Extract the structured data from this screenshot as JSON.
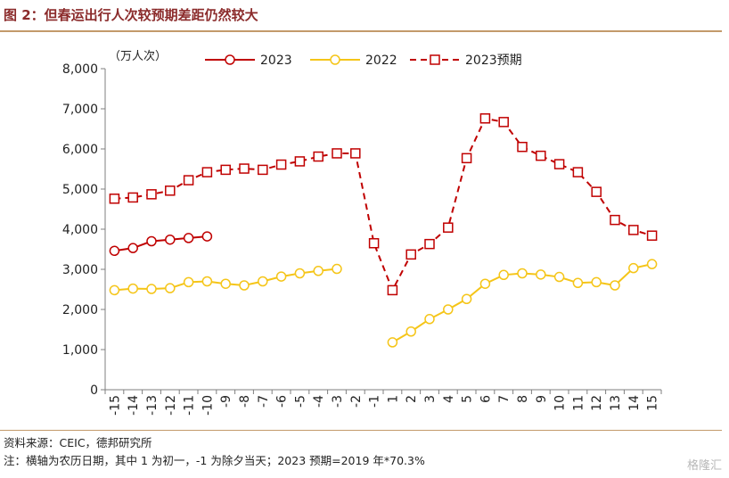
{
  "figure": {
    "title": "图 2：但春运出行人次较预期差距仍然较大",
    "source": "资料来源：CEIC，德邦研究所",
    "note": "注：横轴为农历日期，其中 1 为初一，-1 为除夕当天；2023 预期=2019 年*70.3%",
    "watermark": "格隆汇"
  },
  "chart_data": {
    "type": "line",
    "title": "",
    "xlabel": "",
    "ylabel": "（万人次）",
    "categories": [
      "-15",
      "-14",
      "-13",
      "-12",
      "-11",
      "-10",
      "-9",
      "-8",
      "-7",
      "-6",
      "-5",
      "-4",
      "-3",
      "-2",
      "-1",
      "1",
      "2",
      "3",
      "4",
      "5",
      "6",
      "7",
      "8",
      "9",
      "10",
      "11",
      "12",
      "13",
      "14",
      "15"
    ],
    "ylim": [
      0,
      8000
    ],
    "yticks": [
      0,
      1000,
      2000,
      3000,
      4000,
      5000,
      6000,
      7000,
      8000
    ],
    "ytick_labels": [
      "0",
      "1,000",
      "2,000",
      "3,000",
      "4,000",
      "5,000",
      "6,000",
      "7,000",
      "8,000"
    ],
    "grid": false,
    "legend_position": "top",
    "series": [
      {
        "name": "2023",
        "color": "#C00000",
        "line_style": "solid",
        "marker": "circle",
        "values": [
          3460,
          3530,
          3700,
          3740,
          3780,
          3820,
          null,
          null,
          null,
          null,
          null,
          null,
          null,
          null,
          null,
          null,
          null,
          null,
          null,
          null,
          null,
          null,
          null,
          null,
          null,
          null,
          null,
          null,
          null,
          null
        ]
      },
      {
        "name": "2022",
        "color": "#F5C518",
        "line_style": "solid",
        "marker": "circle",
        "values": [
          2480,
          2520,
          2510,
          2530,
          2680,
          2700,
          2640,
          2600,
          2700,
          2820,
          2900,
          2960,
          3010,
          null,
          null,
          1180,
          1450,
          1760,
          2000,
          2260,
          2640,
          2860,
          2900,
          2870,
          2810,
          2660,
          2680,
          2600,
          3030,
          3130
        ]
      },
      {
        "name": "2023预期",
        "color": "#C00000",
        "line_style": "dashed",
        "marker": "square",
        "values": [
          4760,
          4790,
          4870,
          4960,
          5220,
          5420,
          5480,
          5510,
          5480,
          5610,
          5690,
          5810,
          5890,
          5890,
          3650,
          2480,
          3370,
          3630,
          4040,
          5770,
          6760,
          6670,
          6050,
          5830,
          5620,
          5420,
          4930,
          4230,
          3980,
          3840
        ]
      }
    ]
  }
}
